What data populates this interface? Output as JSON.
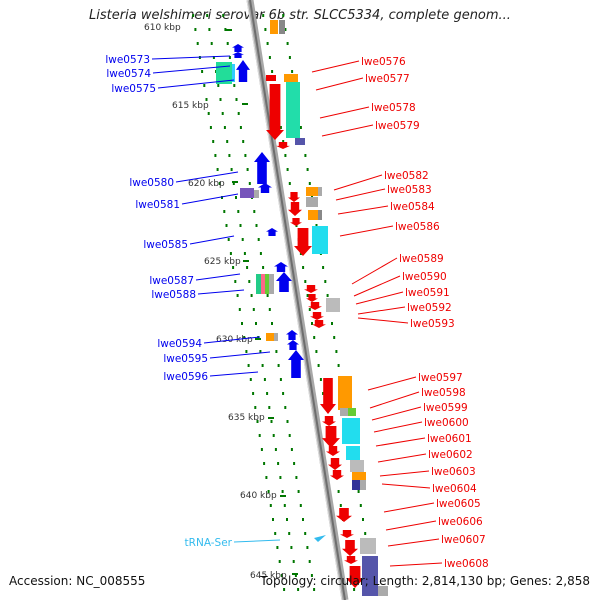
{
  "title": "Listeria welshimeri serovar 6b str. SLCC5334, complete genom...",
  "footer": {
    "accession": "Accession: NC_008555",
    "topology": "Topology: circular; Length: 2,814,130 bp; Genes: 2,858"
  },
  "colors": {
    "forward": "#0000ee",
    "reverse": "#ee0000",
    "trna": "#33bbee",
    "kbp_tick": "#007700",
    "backbone": "#999999"
  },
  "kbp_labels": [
    "610 kbp",
    "615 kbp",
    "620 kbp",
    "625 kbp",
    "630 kbp",
    "635 kbp",
    "640 kbp",
    "645 kbp"
  ],
  "left_labels": [
    {
      "text": "lwe0573",
      "kind": "gene"
    },
    {
      "text": "lwe0574",
      "kind": "gene"
    },
    {
      "text": "lwe0575",
      "kind": "gene"
    },
    {
      "text": "lwe0580",
      "kind": "gene"
    },
    {
      "text": "lwe0581",
      "kind": "gene"
    },
    {
      "text": "lwe0585",
      "kind": "gene"
    },
    {
      "text": "lwe0587",
      "kind": "gene"
    },
    {
      "text": "lwe0588",
      "kind": "gene"
    },
    {
      "text": "lwe0594",
      "kind": "gene"
    },
    {
      "text": "lwe0595",
      "kind": "gene"
    },
    {
      "text": "lwe0596",
      "kind": "gene"
    },
    {
      "text": "tRNA-Ser",
      "kind": "trna"
    }
  ],
  "right_labels": [
    "lwe0576",
    "lwe0577",
    "lwe0578",
    "lwe0579",
    "lwe0582",
    "lwe0583",
    "lwe0584",
    "lwe0586",
    "lwe0589",
    "lwe0590",
    "lwe0591",
    "lwe0592",
    "lwe0593",
    "lwe0597",
    "lwe0598",
    "lwe0599",
    "lwe0600",
    "lwe0601",
    "lwe0602",
    "lwe0603",
    "lwe0604",
    "lwe0605",
    "lwe0606",
    "lwe0607",
    "lwe0608"
  ]
}
